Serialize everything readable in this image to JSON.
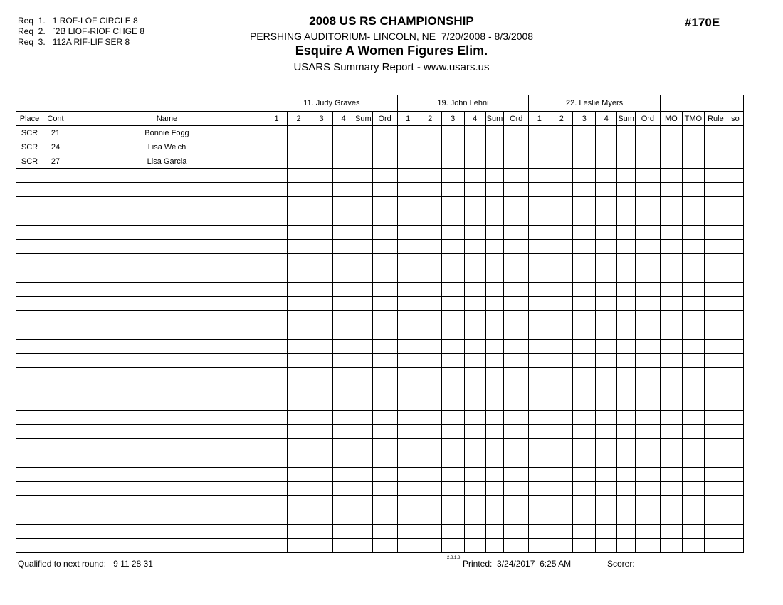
{
  "header": {
    "requirements": [
      "Req  1.   1 ROF-LOF CIRCLE 8",
      "Req  2.   `2B LIOF-RIOF CHGE 8",
      "Req  3.   112A RIF-LIF SER 8"
    ],
    "title": "2008 US RS CHAMPIONSHIP",
    "venue_dates": "PERSHING AUDITORIUM- LINCOLN, NE  7/20/2008 - 8/3/2008",
    "event_name": "Esquire A Women Figures Elim.",
    "report_line": "USARS Summary Report - www.usars.us",
    "event_number": "#170E"
  },
  "table": {
    "judges": [
      "11.  Judy Graves",
      "19.  John Lehni",
      "22.  Leslie  Myers"
    ],
    "left_columns": [
      "Place",
      "Cont",
      "Name"
    ],
    "judge_subcolumns": [
      "1",
      "2",
      "3",
      "4",
      "Sum",
      "Ord"
    ],
    "right_columns": [
      "MO",
      "TMO",
      "Rule",
      "so"
    ],
    "skaters": [
      {
        "place": "SCR",
        "cont": "21",
        "name": "Bonnie Fogg"
      },
      {
        "place": "SCR",
        "cont": "24",
        "name": "Lisa Welch"
      },
      {
        "place": "SCR",
        "cont": "27",
        "name": "Lisa Garcia"
      }
    ],
    "total_rows": 30
  },
  "footer": {
    "qualified": "Qualified to next round:   9 11 28 31",
    "version": "2.8.1.8",
    "printed": "Printed:  3/24/2017  6:25 AM",
    "scorer_label": "Scorer:"
  }
}
